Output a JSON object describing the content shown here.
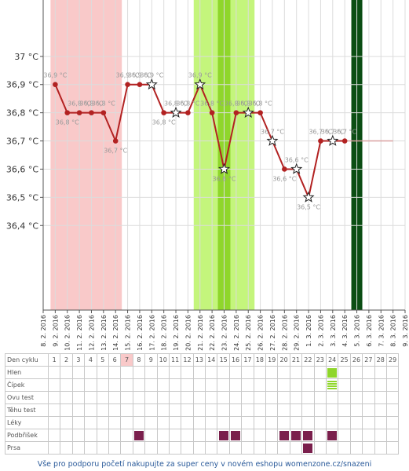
{
  "chart_data": {
    "type": "line",
    "ylim": [
      36.1,
      37.2
    ],
    "y_ticks": [
      "37 °C",
      "36,9 °C",
      "36,8 °C",
      "36,7 °C",
      "36,6 °C",
      "36,5 °C",
      "36,4 °C"
    ],
    "y_tick_values": [
      37.0,
      36.9,
      36.8,
      36.7,
      36.6,
      36.5,
      36.4
    ],
    "dates": [
      "8. 2. 2016",
      "9. 2. 2016",
      "10. 2. 2016",
      "11. 2. 2016",
      "12. 2. 2016",
      "13. 2. 2016",
      "14. 2. 2016",
      "15. 2. 2016",
      "16. 2. 2016",
      "17. 2. 2016",
      "18. 2. 2016",
      "19. 2. 2016",
      "20. 2. 2016",
      "21. 2. 2016",
      "22. 2. 2016",
      "23. 2. 2016",
      "24. 2. 2016",
      "25. 2. 2016",
      "26. 2. 2016",
      "27. 2. 2016",
      "28. 2. 2016",
      "29. 2. 2016",
      "1. 3. 2016",
      "2. 3. 2016",
      "3. 3. 2016",
      "4. 3. 2016",
      "5. 3. 2016",
      "6. 3. 2016",
      "7. 3. 2016",
      "8. 3. 2016",
      "9. 3. 2016"
    ],
    "points": [
      {
        "day": 1,
        "value": 36.9,
        "label": "36,9 °C",
        "star": false
      },
      {
        "day": 2,
        "value": 36.8,
        "label": "36,8 °C",
        "star": false
      },
      {
        "day": 3,
        "value": 36.8,
        "label": "36,8 °C",
        "star": false
      },
      {
        "day": 4,
        "value": 36.8,
        "label": "36,8 °C",
        "star": false
      },
      {
        "day": 5,
        "value": 36.8,
        "label": "36,8 °C",
        "star": false
      },
      {
        "day": 6,
        "value": 36.7,
        "label": "36,7 °C",
        "star": false
      },
      {
        "day": 7,
        "value": 36.9,
        "label": "36,9 °C",
        "star": false
      },
      {
        "day": 8,
        "value": 36.9,
        "label": "36,9 °C",
        "star": false
      },
      {
        "day": 9,
        "value": 36.9,
        "label": "36,9 °C",
        "star": true
      },
      {
        "day": 10,
        "value": 36.8,
        "label": "36,8 °C",
        "star": false
      },
      {
        "day": 11,
        "value": 36.8,
        "label": "36,8 °C",
        "star": true
      },
      {
        "day": 12,
        "value": 36.8,
        "label": "36,8 °C",
        "star": false
      },
      {
        "day": 13,
        "value": 36.9,
        "label": "36,9 °C",
        "star": true
      },
      {
        "day": 14,
        "value": 36.8,
        "label": "36,8 °C",
        "star": false
      },
      {
        "day": 15,
        "value": 36.6,
        "label": "36,6 °C",
        "star": true
      },
      {
        "day": 16,
        "value": 36.8,
        "label": "36,8 °C",
        "star": false
      },
      {
        "day": 17,
        "value": 36.8,
        "label": "36,8 °C",
        "star": true
      },
      {
        "day": 18,
        "value": 36.8,
        "label": "36,8 °C",
        "star": false
      },
      {
        "day": 19,
        "value": 36.7,
        "label": "36,7 °C",
        "star": true
      },
      {
        "day": 20,
        "value": 36.6,
        "label": "36,6 °C",
        "star": false
      },
      {
        "day": 21,
        "value": 36.6,
        "label": "36,6 °C",
        "star": true
      },
      {
        "day": 22,
        "value": 36.5,
        "label": "36,5 °C",
        "star": true
      },
      {
        "day": 23,
        "value": 36.7,
        "label": "36,7 °C",
        "star": false
      },
      {
        "day": 24,
        "value": 36.7,
        "label": "36,7 °C",
        "star": true
      },
      {
        "day": 25,
        "value": 36.7,
        "label": "36,7 °C",
        "star": false
      }
    ],
    "menses_days": [
      1,
      6
    ],
    "fertile_days": [
      13,
      17
    ],
    "fertile_peak_day": 15,
    "projection_end_day": 29,
    "marker_day": 26,
    "grid": true,
    "colors": {
      "line": "#b22222",
      "menses": "#f9c9c9",
      "fertile": "#c4f57c",
      "fertile_peak": "#8fd62b",
      "marker": "#0b4d13",
      "projection": "#d9a0a0"
    }
  },
  "table": {
    "day_header": "Den cyklu",
    "days": [
      "1",
      "2",
      "3",
      "4",
      "5",
      "6",
      "7",
      "8",
      "9",
      "10",
      "11",
      "12",
      "13",
      "14",
      "15",
      "16",
      "17",
      "18",
      "19",
      "20",
      "21",
      "22",
      "23",
      "24",
      "25",
      "26",
      "27",
      "28",
      "29"
    ],
    "rows": [
      {
        "label": "Hlen",
        "marks": {
          "24": "green"
        }
      },
      {
        "label": "Čípek",
        "marks": {
          "24": "green-striped"
        }
      },
      {
        "label": "Ovu test",
        "marks": {}
      },
      {
        "label": "Těhu test",
        "marks": {}
      },
      {
        "label": "Léky",
        "marks": {}
      },
      {
        "label": "Podbřišek",
        "marks": {
          "8": "dark",
          "15": "dark",
          "16": "dark",
          "20": "dark",
          "21": "dark",
          "22": "dark",
          "24": "dark"
        }
      },
      {
        "label": "Prsa",
        "marks": {
          "22": "dark"
        }
      }
    ],
    "highlight_day": "7"
  },
  "footer": {
    "text": "Vše pro podporu početí nakupujte za super ceny v novém eshopu womenzone.cz/snazeni"
  }
}
